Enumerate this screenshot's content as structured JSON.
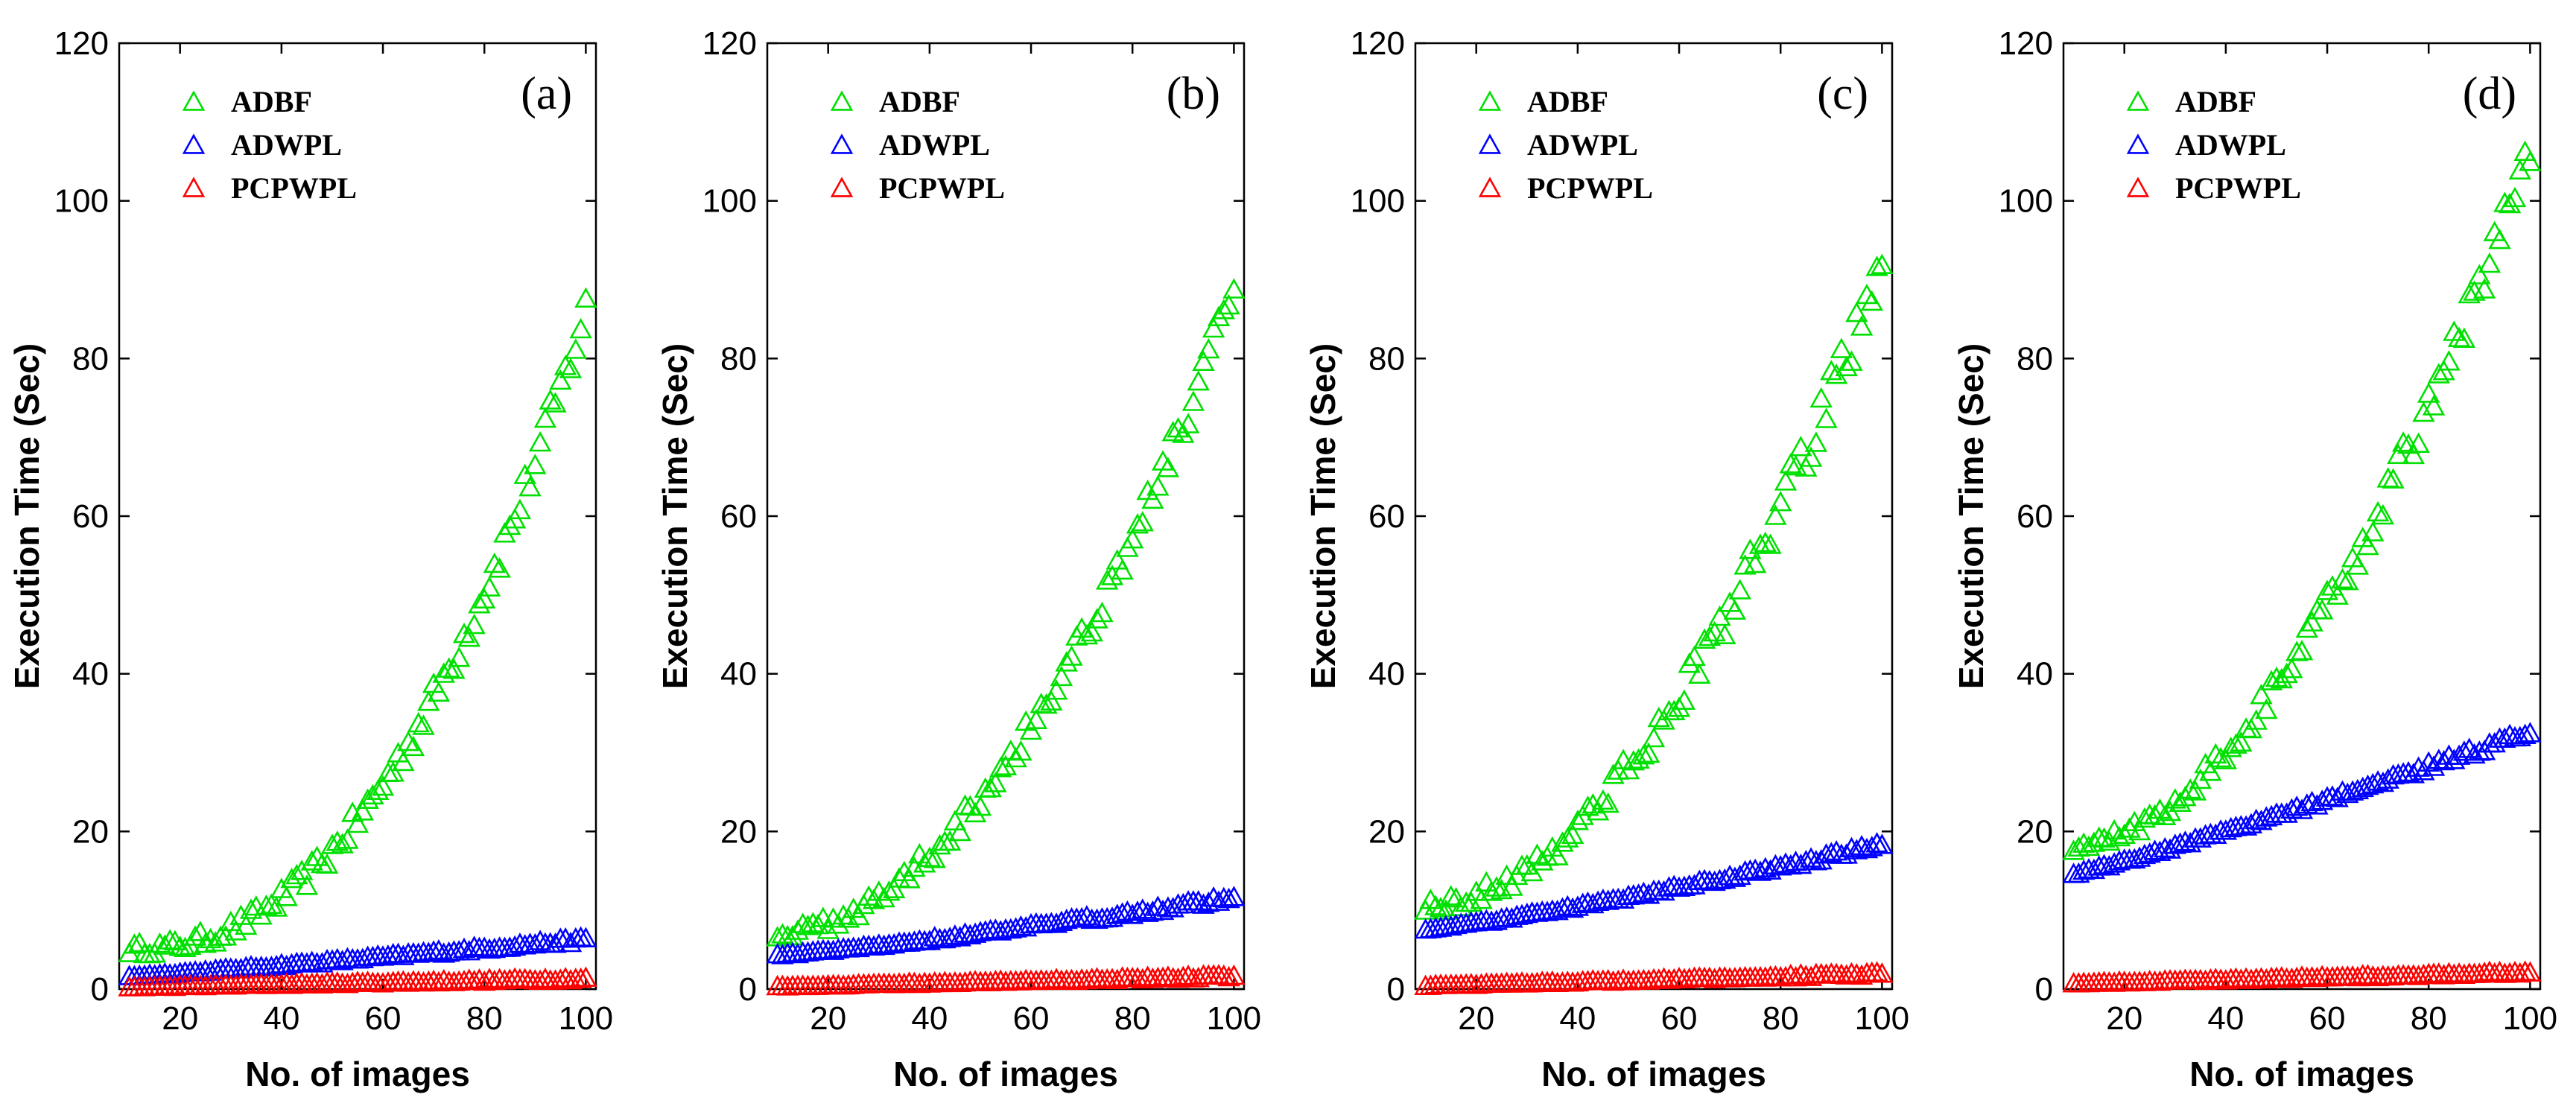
{
  "chart_data": [
    {
      "type": "scatter",
      "panel_label": "(a)",
      "xlabel": "No. of images",
      "ylabel": "Execution Time (Sec)",
      "xlim": [
        8,
        102
      ],
      "ylim": [
        0,
        120
      ],
      "xticks": [
        20,
        40,
        60,
        80,
        100
      ],
      "yticks": [
        0,
        20,
        40,
        60,
        80,
        100,
        120
      ],
      "grid": false,
      "legend_position": "top-left",
      "marker": "triangle",
      "series": [
        {
          "name": "ADBF",
          "color": "#00e000",
          "x_start": 10,
          "x_step": 1,
          "points": 91,
          "y_start": 5.0,
          "y_end": 86.0,
          "exponent": 2.3,
          "jitter": 1.8
        },
        {
          "name": "ADWPL",
          "color": "#0000ff",
          "x_start": 10,
          "x_step": 1,
          "points": 91,
          "y_start": 1.5,
          "y_end": 6.2,
          "exponent": 1.1,
          "jitter": 0.25
        },
        {
          "name": "PCPWPL",
          "color": "#ff0000",
          "x_start": 10,
          "x_step": 1,
          "points": 91,
          "y_start": 0.1,
          "y_end": 1.2,
          "exponent": 1.0,
          "jitter": 0.15
        }
      ]
    },
    {
      "type": "scatter",
      "panel_label": "(b)",
      "xlabel": "No. of images",
      "ylabel": "Execution Time (Sec)",
      "xlim": [
        8,
        102
      ],
      "ylim": [
        0,
        120
      ],
      "xticks": [
        20,
        40,
        60,
        80,
        100
      ],
      "yticks": [
        0,
        20,
        40,
        60,
        80,
        100,
        120
      ],
      "grid": false,
      "legend_position": "top-left",
      "marker": "triangle",
      "series": [
        {
          "name": "ADBF",
          "color": "#00e000",
          "x_start": 10,
          "x_step": 1,
          "points": 91,
          "y_start": 7.0,
          "y_end": 88.0,
          "exponent": 1.9,
          "jitter": 1.8
        },
        {
          "name": "ADWPL",
          "color": "#0000ff",
          "x_start": 10,
          "x_step": 1,
          "points": 91,
          "y_start": 4.2,
          "y_end": 11.5,
          "exponent": 1.2,
          "jitter": 0.3
        },
        {
          "name": "PCPWPL",
          "color": "#ff0000",
          "x_start": 10,
          "x_step": 1,
          "points": 91,
          "y_start": 0.2,
          "y_end": 1.5,
          "exponent": 1.0,
          "jitter": 0.15
        }
      ]
    },
    {
      "type": "scatter",
      "panel_label": "(c)",
      "xlabel": "No. of images",
      "ylabel": "Execution Time (Sec)",
      "xlim": [
        8,
        102
      ],
      "ylim": [
        0,
        120
      ],
      "xticks": [
        20,
        40,
        60,
        80,
        100
      ],
      "yticks": [
        0,
        20,
        40,
        60,
        80,
        100,
        120
      ],
      "grid": false,
      "legend_position": "top-left",
      "marker": "triangle",
      "series": [
        {
          "name": "ADBF",
          "color": "#00e000",
          "x_start": 10,
          "x_step": 1,
          "points": 91,
          "y_start": 10.5,
          "y_end": 92.0,
          "exponent": 1.9,
          "jitter": 2.2
        },
        {
          "name": "ADWPL",
          "color": "#0000ff",
          "x_start": 10,
          "x_step": 1,
          "points": 91,
          "y_start": 7.5,
          "y_end": 18.2,
          "exponent": 1.2,
          "jitter": 0.3
        },
        {
          "name": "PCPWPL",
          "color": "#ff0000",
          "x_start": 10,
          "x_step": 1,
          "points": 91,
          "y_start": 0.3,
          "y_end": 1.8,
          "exponent": 1.0,
          "jitter": 0.15
        }
      ]
    },
    {
      "type": "scatter",
      "panel_label": "(d)",
      "xlabel": "No. of images",
      "ylabel": "Execution Time (Sec)",
      "xlim": [
        8,
        102
      ],
      "ylim": [
        0,
        120
      ],
      "xticks": [
        20,
        40,
        60,
        80,
        100
      ],
      "yticks": [
        0,
        20,
        40,
        60,
        80,
        100,
        120
      ],
      "grid": false,
      "legend_position": "top-left",
      "marker": "triangle",
      "series": [
        {
          "name": "ADBF",
          "color": "#00e000",
          "x_start": 10,
          "x_step": 1,
          "points": 91,
          "y_start": 18.0,
          "y_end": 106.0,
          "exponent": 1.8,
          "jitter": 2.0
        },
        {
          "name": "ADWPL",
          "color": "#0000ff",
          "x_start": 10,
          "x_step": 1,
          "points": 91,
          "y_start": 14.5,
          "y_end": 32.5,
          "exponent": 1.1,
          "jitter": 0.4
        },
        {
          "name": "PCPWPL",
          "color": "#ff0000",
          "x_start": 10,
          "x_step": 1,
          "points": 91,
          "y_start": 0.6,
          "y_end": 2.0,
          "exponent": 1.0,
          "jitter": 0.15
        }
      ]
    }
  ]
}
